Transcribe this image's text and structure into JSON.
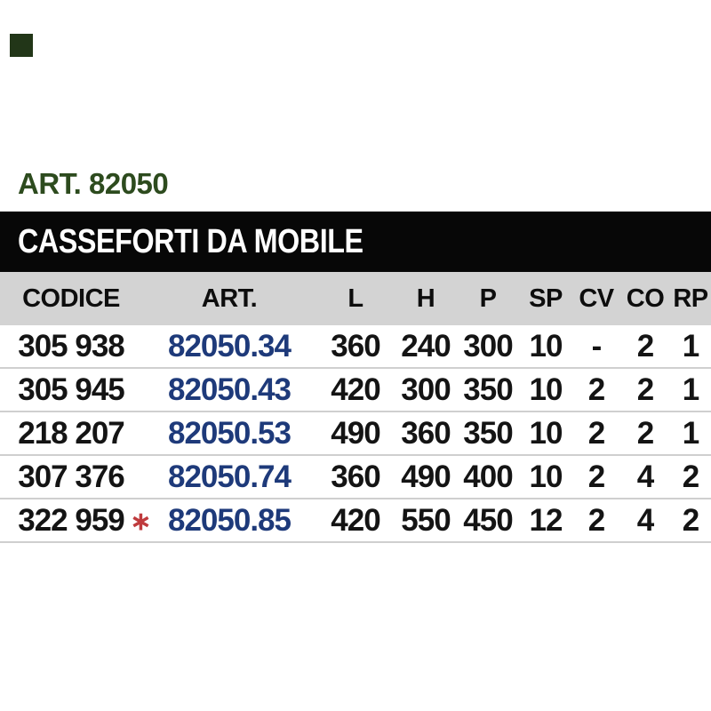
{
  "header": {
    "article_label": "ART. 82050"
  },
  "banner": {
    "title": "CASSEFORTI DA MOBILE"
  },
  "table": {
    "columns": [
      "CODICE",
      "ART.",
      "L",
      "H",
      "P",
      "SP",
      "CV",
      "CO",
      "RP"
    ],
    "rows": [
      {
        "codice": "305 938",
        "art": "82050.34",
        "l": "360",
        "h": "240",
        "p": "300",
        "sp": "10",
        "cv": "-",
        "co": "2",
        "rp": "1"
      },
      {
        "codice": "305 945",
        "art": "82050.43",
        "l": "420",
        "h": "300",
        "p": "350",
        "sp": "10",
        "cv": "2",
        "co": "2",
        "rp": "1"
      },
      {
        "codice": "218 207",
        "art": "82050.53",
        "l": "490",
        "h": "360",
        "p": "350",
        "sp": "10",
        "cv": "2",
        "co": "2",
        "rp": "1"
      },
      {
        "codice": "307 376",
        "art": "82050.74",
        "l": "360",
        "h": "490",
        "p": "400",
        "sp": "10",
        "cv": "2",
        "co": "4",
        "rp": "2"
      },
      {
        "codice": "322 959",
        "art": "82050.85",
        "l": "420",
        "h": "550",
        "p": "450",
        "sp": "12",
        "cv": "2",
        "co": "4",
        "rp": "2",
        "note": "∗"
      }
    ]
  },
  "colors": {
    "accent_green": "#2d4b1e",
    "marker_green": "#223618",
    "banner_bg": "#070707",
    "banner_text": "#ffffff",
    "header_row_bg": "#d3d3d3",
    "art_blue": "#1e3a7a",
    "asterisk_red": "#bf3b3d",
    "body_text": "#141414",
    "separator": "#cfcfcf"
  }
}
